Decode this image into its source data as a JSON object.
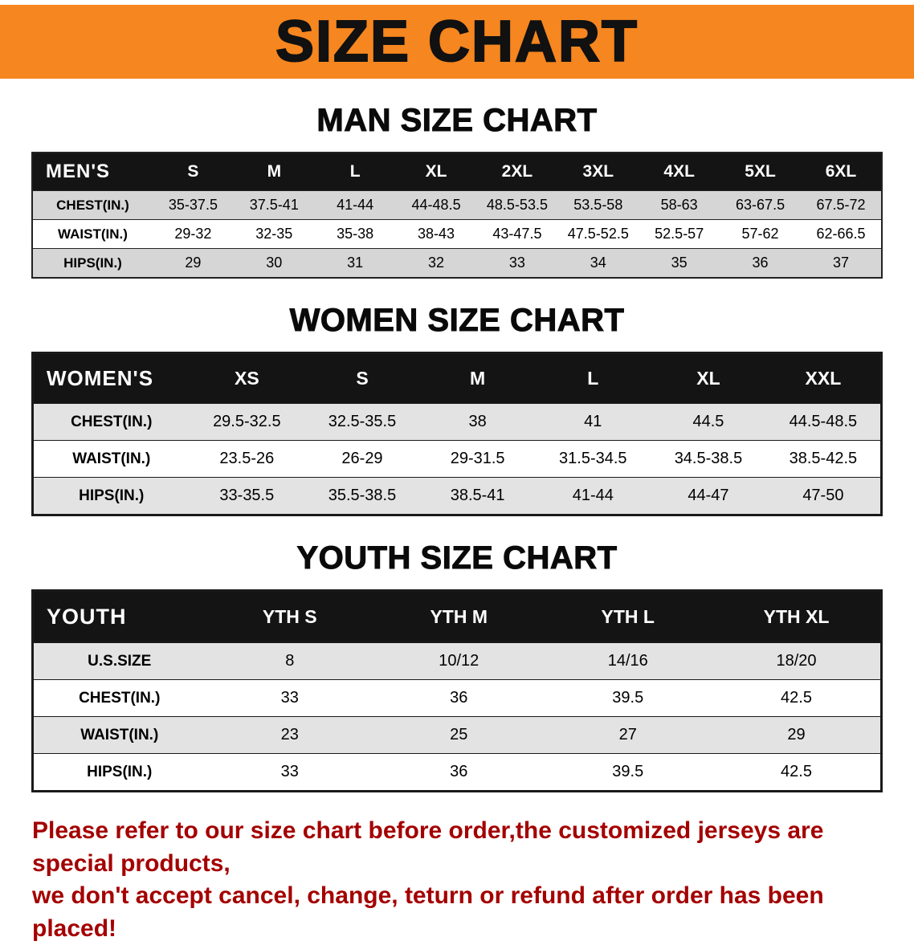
{
  "banner": {
    "title": "SIZE CHART"
  },
  "men": {
    "heading": "MAN SIZE CHART",
    "header": {
      "label": "MEN'S",
      "sizes": [
        "S",
        "M",
        "L",
        "XL",
        "2XL",
        "3XL",
        "4XL",
        "5XL",
        "6XL"
      ]
    },
    "rows": [
      {
        "label": "CHEST(IN.)",
        "values": [
          "35-37.5",
          "37.5-41",
          "41-44",
          "44-48.5",
          "48.5-53.5",
          "53.5-58",
          "58-63",
          "63-67.5",
          "67.5-72"
        ]
      },
      {
        "label": "WAIST(IN.)",
        "values": [
          "29-32",
          "32-35",
          "35-38",
          "38-43",
          "43-47.5",
          "47.5-52.5",
          "52.5-57",
          "57-62",
          "62-66.5"
        ]
      },
      {
        "label": "HIPS(IN.)",
        "values": [
          "29",
          "30",
          "31",
          "32",
          "33",
          "34",
          "35",
          "36",
          "37"
        ]
      }
    ]
  },
  "women": {
    "heading": "WOMEN SIZE CHART",
    "header": {
      "label": "WOMEN'S",
      "sizes": [
        "XS",
        "S",
        "M",
        "L",
        "XL",
        "XXL"
      ]
    },
    "rows": [
      {
        "label": "CHEST(IN.)",
        "values": [
          "29.5-32.5",
          "32.5-35.5",
          "38",
          "41",
          "44.5",
          "44.5-48.5"
        ]
      },
      {
        "label": "WAIST(IN.)",
        "values": [
          "23.5-26",
          "26-29",
          "29-31.5",
          "31.5-34.5",
          "34.5-38.5",
          "38.5-42.5"
        ]
      },
      {
        "label": "HIPS(IN.)",
        "values": [
          "33-35.5",
          "35.5-38.5",
          "38.5-41",
          "41-44",
          "44-47",
          "47-50"
        ]
      }
    ]
  },
  "youth": {
    "heading": "YOUTH SIZE CHART",
    "header": {
      "label": "YOUTH",
      "sizes": [
        "YTH S",
        "YTH M",
        "YTH L",
        "YTH XL"
      ]
    },
    "rows": [
      {
        "label": "U.S.SIZE",
        "values": [
          "8",
          "10/12",
          "14/16",
          "18/20"
        ]
      },
      {
        "label": "CHEST(IN.)",
        "values": [
          "33",
          "36",
          "39.5",
          "42.5"
        ]
      },
      {
        "label": "WAIST(IN.)",
        "values": [
          "23",
          "25",
          "27",
          "29"
        ]
      },
      {
        "label": "HIPS(IN.)",
        "values": [
          "33",
          "36",
          "39.5",
          "42.5"
        ]
      }
    ]
  },
  "notice": {
    "line1": "Please refer to our size chart before order,the customized jerseys are special products,",
    "line2": "we don't accept cancel, change, teturn or refund after order has been placed!"
  },
  "colors": {
    "banner_bg": "#f6861f",
    "table_header_bg": "#141414",
    "stripe_men": "#d6d6d6",
    "stripe_light": "#e3e3e3",
    "notice_text": "#a40000"
  }
}
